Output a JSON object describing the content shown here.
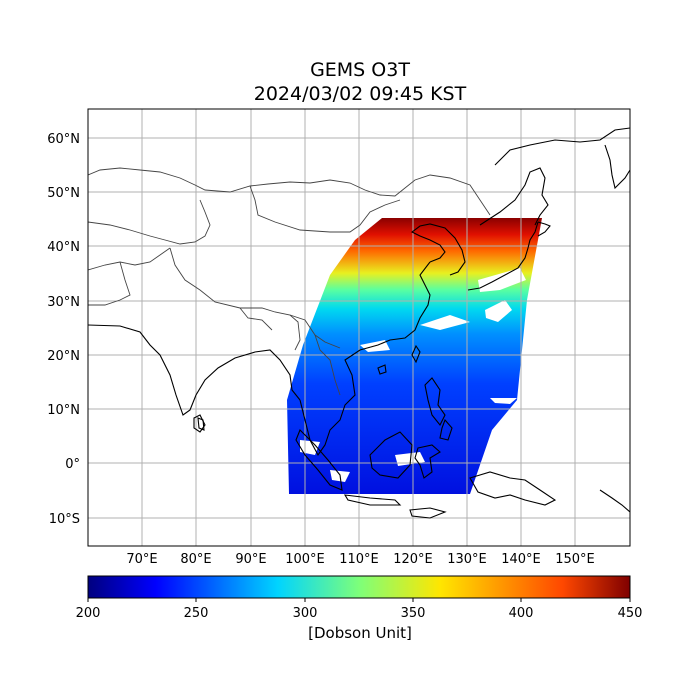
{
  "title_line1": "GEMS O3T",
  "title_line2": "2024/03/02 09:45 KST",
  "lat_labels": [
    "60°N",
    "50°N",
    "40°N",
    "30°N",
    "20°N",
    "10°N",
    "0°",
    "10°S"
  ],
  "lon_labels": [
    "70°E",
    "80°E",
    "90°E",
    "100°E",
    "110°E",
    "120°E",
    "130°E",
    "140°E",
    "150°E"
  ],
  "colorbar": {
    "ticks": [
      "200",
      "250",
      "300",
      "350",
      "400",
      "450"
    ],
    "label": "[Dobson Unit]",
    "colors": [
      "#00007f",
      "#0000ff",
      "#00d4ff",
      "#7dff7a",
      "#ffe600",
      "#ff4800",
      "#7f0000"
    ]
  },
  "map": {
    "projection": "PlateCarree",
    "lon_range": [
      61,
      161
    ],
    "lat_range": [
      -15,
      65
    ],
    "grid": true,
    "field": "ozone total column"
  }
}
